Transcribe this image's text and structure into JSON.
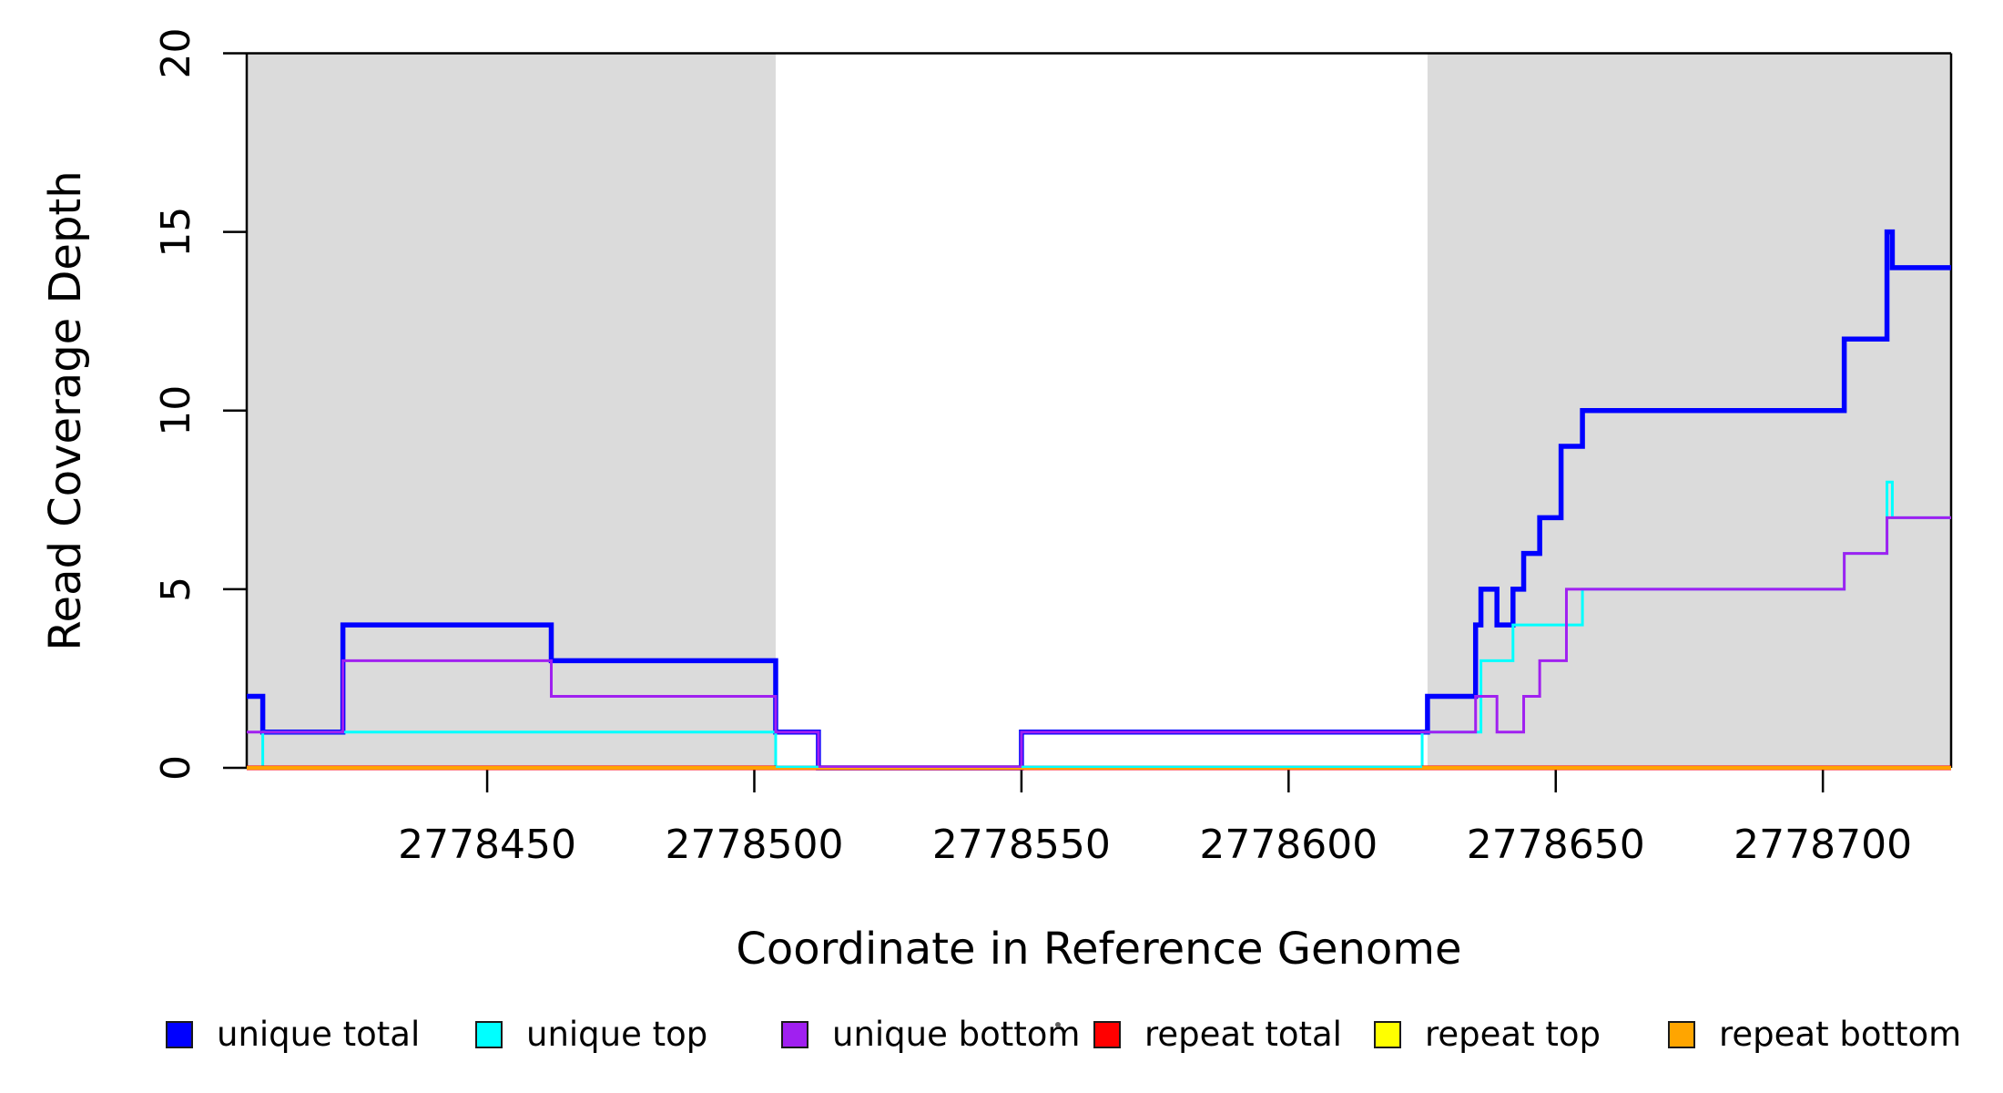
{
  "chart_data": {
    "type": "line",
    "subtype": "step-coverage",
    "title": "",
    "xlabel": "Coordinate in Reference Genome",
    "ylabel": "Read Coverage Depth",
    "xlim": [
      2778405,
      2778724
    ],
    "ylim": [
      0,
      20
    ],
    "x_ticks": [
      "2778450",
      "2778500",
      "2778550",
      "2778600",
      "2778650",
      "2778700"
    ],
    "x_tick_values": [
      2778450,
      2778500,
      2778550,
      2778600,
      2778650,
      2778700
    ],
    "y_ticks": [
      "0",
      "5",
      "10",
      "15",
      "20"
    ],
    "y_tick_values": [
      0,
      5,
      10,
      15,
      20
    ],
    "grid": false,
    "frame": {
      "color": "#000000"
    },
    "highlight_bands": {
      "color": "#DBDBDB",
      "regions": [
        [
          2778405,
          2778504
        ],
        [
          2778626,
          2778724
        ]
      ]
    },
    "series": [
      {
        "name": "unique-total",
        "label": "unique total",
        "color": "#0000FF",
        "width": 5.5,
        "xend": 2778724,
        "points": [
          [
            2778405,
            2
          ],
          [
            2778408,
            1
          ],
          [
            2778423,
            4
          ],
          [
            2778462,
            3
          ],
          [
            2778504,
            1
          ],
          [
            2778512,
            0
          ],
          [
            2778550,
            1
          ],
          [
            2778626,
            2
          ],
          [
            2778635,
            4
          ],
          [
            2778636,
            5
          ],
          [
            2778639,
            4
          ],
          [
            2778642,
            5
          ],
          [
            2778644,
            6
          ],
          [
            2778647,
            7
          ],
          [
            2778651,
            9
          ],
          [
            2778655,
            10
          ],
          [
            2778704,
            12
          ],
          [
            2778712,
            15
          ],
          [
            2778713,
            14
          ]
        ]
      },
      {
        "name": "unique-top",
        "label": "unique top",
        "color": "#00FFFF",
        "width": 3,
        "xend": 2778724,
        "points": [
          [
            2778405,
            0
          ],
          [
            2778408,
            1
          ],
          [
            2778504,
            0
          ],
          [
            2778625,
            1
          ],
          [
            2778636,
            3
          ],
          [
            2778642,
            4
          ],
          [
            2778655,
            5
          ],
          [
            2778704,
            6
          ],
          [
            2778712,
            8
          ],
          [
            2778713,
            7
          ]
        ]
      },
      {
        "name": "unique-bottom",
        "label": "unique bottom",
        "color": "#A020F0",
        "width": 3,
        "xend": 2778724,
        "points": [
          [
            2778405,
            1
          ],
          [
            2778423,
            3
          ],
          [
            2778462,
            2
          ],
          [
            2778504,
            1
          ],
          [
            2778512,
            0
          ],
          [
            2778550,
            1
          ],
          [
            2778635,
            2
          ],
          [
            2778639,
            1
          ],
          [
            2778644,
            2
          ],
          [
            2778647,
            3
          ],
          [
            2778652,
            5
          ],
          [
            2778704,
            6
          ],
          [
            2778712,
            7
          ]
        ]
      },
      {
        "name": "repeat-total",
        "label": "repeat total",
        "color": "#FF0000",
        "width": 5,
        "xend": 2778724,
        "points": [
          [
            2778405,
            0
          ]
        ]
      },
      {
        "name": "repeat-top",
        "label": "repeat top",
        "color": "#FFFF00",
        "width": 3.5,
        "xend": 2778724,
        "points": [
          [
            2778405,
            0
          ]
        ]
      },
      {
        "name": "repeat-bottom",
        "label": "repeat bottom",
        "color": "#FFA500",
        "width": 3.5,
        "xend": 2778724,
        "points": [
          [
            2778405,
            0
          ]
        ]
      }
    ],
    "zero_overlays": [
      {
        "color": "#00FFFF",
        "from": 2778504,
        "to": 2778512
      },
      {
        "color": "#A020F0",
        "from": 2778512,
        "to": 2778550
      },
      {
        "color": "#00FFFF",
        "from": 2778550,
        "to": 2778625
      }
    ],
    "legend": {
      "position": "bottom",
      "items": [
        {
          "label": "unique total",
          "color": "#0000FF"
        },
        {
          "label": "unique top",
          "color": "#00FFFF"
        },
        {
          "label": "unique bottom",
          "color": "#A020F0"
        },
        {
          "label": "repeat total",
          "color": "#FF0000"
        },
        {
          "label": "repeat top",
          "color": "#FFFF00"
        },
        {
          "label": "repeat bottom",
          "color": "#FFA500"
        }
      ]
    }
  }
}
